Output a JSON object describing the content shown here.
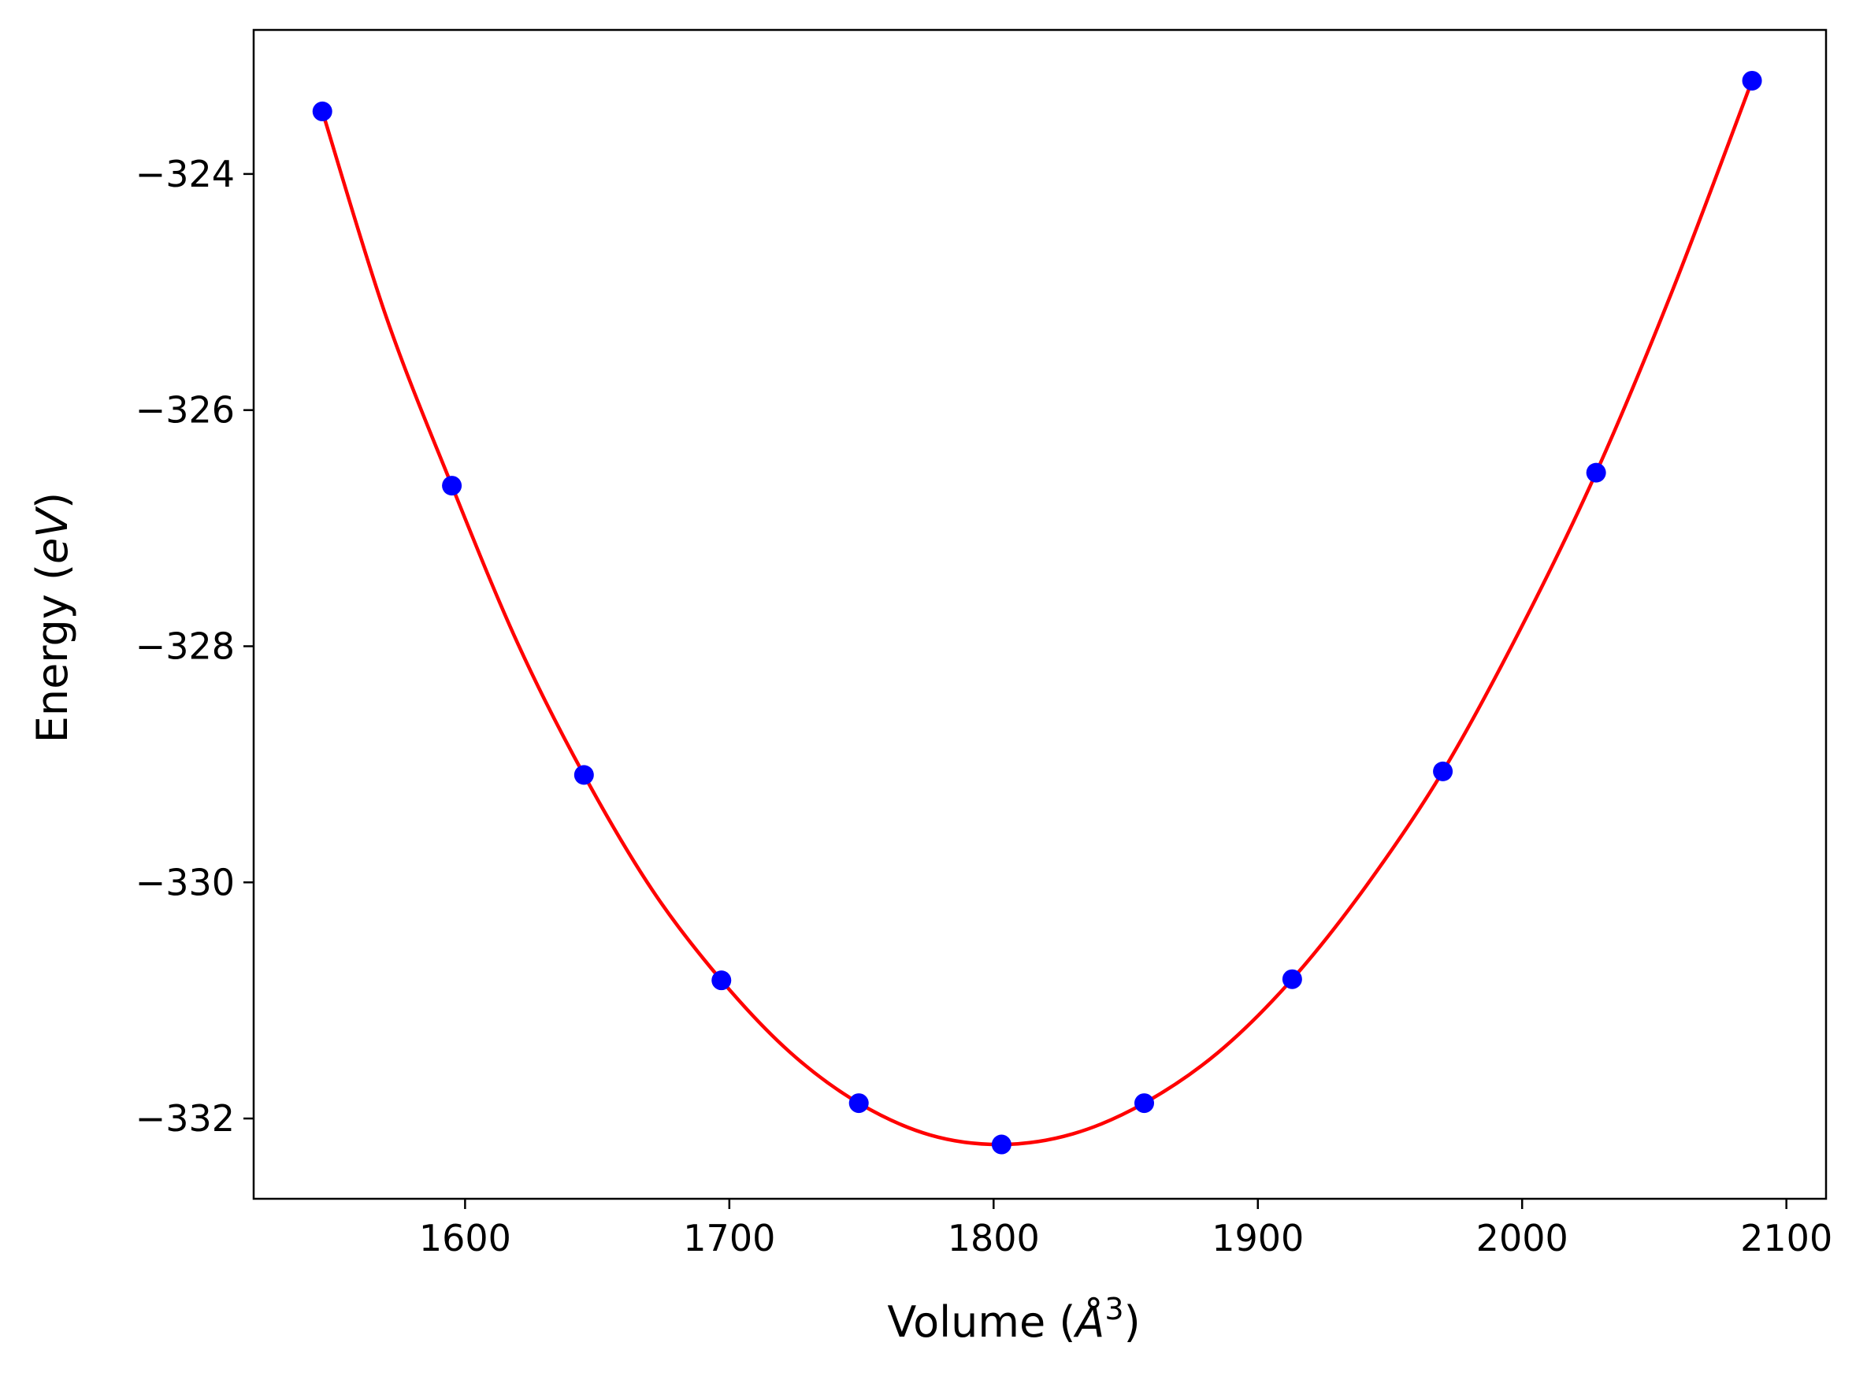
{
  "chart_data": {
    "type": "scatter",
    "xlabel": "Volume",
    "ylabel": "Energy",
    "xlabel_parts": [
      "Volume (",
      "Å",
      "3",
      ")"
    ],
    "ylabel_parts": [
      "Energy (",
      "eV",
      ")"
    ],
    "xlim": [
      1520,
      2115
    ],
    "ylim": [
      -332.68,
      -322.78
    ],
    "xticks": [
      1600,
      1700,
      1800,
      1900,
      2000,
      2100
    ],
    "yticks": [
      -324,
      -326,
      -328,
      -330,
      -332
    ],
    "xtick_labels": [
      "1600",
      "1700",
      "1800",
      "1900",
      "2000",
      "2100"
    ],
    "ytick_labels": [
      "−324",
      "−326",
      "−328",
      "−330",
      "−332"
    ],
    "grid": false,
    "legend": "none",
    "series": [
      {
        "kind": "points",
        "color": "#0000ff",
        "x": [
          1546,
          1595,
          1645,
          1697,
          1749,
          1803,
          1857,
          1913,
          1970,
          2028,
          2087
        ],
        "y": [
          -323.47,
          -326.64,
          -329.09,
          -330.83,
          -331.87,
          -332.22,
          -331.87,
          -330.82,
          -329.06,
          -326.53,
          -323.21
        ]
      },
      {
        "kind": "fit-curve",
        "color": "#ff0000",
        "x": [
          1546,
          1570,
          1595,
          1620,
          1645,
          1671,
          1697,
          1723,
          1749,
          1776,
          1803,
          1830,
          1857,
          1885,
          1913,
          1941,
          1970,
          1999,
          2028,
          2057,
          2087
        ],
        "y": [
          -323.47,
          -325.2,
          -326.64,
          -327.98,
          -329.09,
          -330.07,
          -330.83,
          -331.44,
          -331.87,
          -332.14,
          -332.22,
          -332.13,
          -331.87,
          -331.44,
          -330.82,
          -330.03,
          -329.06,
          -327.87,
          -326.53,
          -324.98,
          -323.21
        ]
      }
    ]
  }
}
